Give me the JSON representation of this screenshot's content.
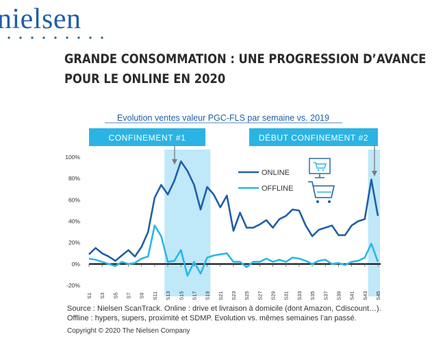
{
  "brand": {
    "logo_text": "nielsen",
    "accent": "#1f5fa6"
  },
  "header": {
    "title_line1": "GRANDE CONSOMMATION : UNE PROGRESSION D’AVANCE",
    "title_line2": "POUR LE ONLINE EN 2020"
  },
  "colors": {
    "online": "#1f5fa6",
    "offline": "#2ab7e6",
    "highlight": "#bfe8f9",
    "banner": "#2bb4e3"
  },
  "chart_data": {
    "type": "line",
    "title": "Evolution ventes valeur PGC-FLS par semaine vs. 2019",
    "x": [
      "S1",
      "S2",
      "S3",
      "S4",
      "S5",
      "S6",
      "S7",
      "S8",
      "S9",
      "S10",
      "S11",
      "S12",
      "S13",
      "S14",
      "S15",
      "S16",
      "S17",
      "S18",
      "S19",
      "S20",
      "S21",
      "S22",
      "S23",
      "S24",
      "S25",
      "S26",
      "S27",
      "S28",
      "S29",
      "S30",
      "S31",
      "S32",
      "S33",
      "S34",
      "S35",
      "S36",
      "S37",
      "S38",
      "S39",
      "S40",
      "S41",
      "S42",
      "S43",
      "S44",
      "S45"
    ],
    "x_tick_labels": [
      "S1",
      "S3",
      "S5",
      "S7",
      "S9",
      "S11",
      "S13",
      "S15",
      "S17",
      "S19",
      "S21",
      "S23",
      "S25",
      "S27",
      "S29",
      "S31",
      "S33",
      "S35",
      "S37",
      "S39",
      "S41",
      "S43",
      "S45"
    ],
    "ylim": [
      -20,
      100
    ],
    "y_ticks": [
      "100%",
      "80%",
      "60%",
      "40%",
      "20%",
      "0%",
      "-20%"
    ],
    "y_tick_values": [
      100,
      80,
      60,
      40,
      20,
      0,
      -20
    ],
    "series": [
      {
        "name": "ONLINE",
        "values": [
          9,
          15,
          10,
          7,
          3,
          8,
          13,
          7,
          16,
          30,
          62,
          74,
          65,
          78,
          96,
          87,
          74,
          51,
          72,
          65,
          53,
          64,
          31,
          48,
          34,
          34,
          37,
          41,
          34,
          42,
          45,
          51,
          50,
          36,
          26,
          32,
          34,
          36,
          27,
          27,
          36,
          40,
          42,
          79,
          45
        ]
      },
      {
        "name": "OFFLINE",
        "values": [
          5,
          4,
          2,
          0,
          -2,
          2,
          0,
          1,
          5,
          7,
          36,
          26,
          2,
          3,
          13,
          -11,
          2,
          -9,
          6,
          8,
          9,
          10,
          2,
          2,
          -3,
          2,
          2,
          5,
          2,
          4,
          2,
          6,
          5,
          3,
          0,
          3,
          4,
          0,
          1,
          -1,
          2,
          3,
          6,
          19,
          2
        ]
      }
    ],
    "annotations": {
      "confinement1": "CONFINEMENT #1",
      "confinement2": "DÉBUT CONFINEMENT #2"
    },
    "highlight_ranges": [
      [
        12.5,
        19.5
      ],
      [
        43.5,
        45.5
      ]
    ],
    "grid": false,
    "legend": "top-right"
  },
  "footer": {
    "source_line1": "Source : Nielsen ScanTrack. Online : drive et livraison à domicile (dont Amazon, Cdiscount…).",
    "source_line2": "Offline : hypers, supers, proximité et SDMP. Evolution vs. mêmes semaines l’an passé.",
    "copyright": "Copyright © 2020 The Nielsen Company"
  }
}
